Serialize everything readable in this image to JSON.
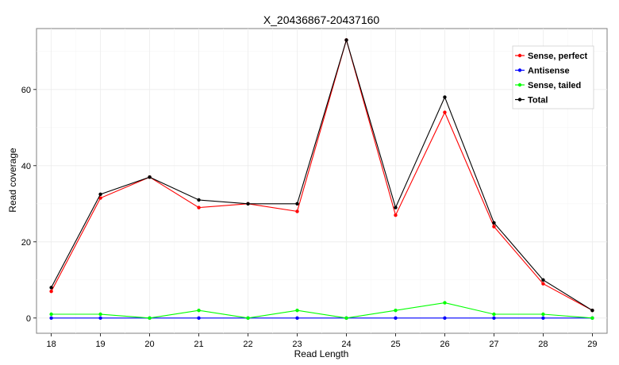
{
  "chart_data": {
    "type": "line",
    "title": "X_20436867-20437160",
    "xlabel": "Read Length",
    "ylabel": "Read coverage",
    "categories": [
      "18",
      "19",
      "20",
      "21",
      "22",
      "23",
      "24",
      "25",
      "26",
      "27",
      "28",
      "29"
    ],
    "ylim": [
      -4,
      76
    ],
    "yticks": [
      0,
      20,
      40,
      60
    ],
    "grid": true,
    "legend_position": "top-right",
    "series": [
      {
        "name": "Sense, perfect",
        "color": "#ff0000",
        "values": [
          7,
          31.5,
          37,
          29,
          30,
          28,
          73,
          27,
          54,
          24,
          9,
          2
        ]
      },
      {
        "name": "Antisense",
        "color": "#0000ff",
        "values": [
          0,
          0,
          0,
          0,
          0,
          0,
          0,
          0,
          0,
          0,
          0,
          0
        ]
      },
      {
        "name": "Sense, tailed",
        "color": "#00ff00",
        "values": [
          1,
          1,
          0,
          2,
          0,
          2,
          0,
          2,
          4,
          1,
          1,
          0
        ]
      },
      {
        "name": "Total",
        "color": "#000000",
        "values": [
          8,
          32.5,
          37,
          31,
          30,
          30,
          73,
          29,
          58,
          25,
          10,
          2
        ]
      }
    ]
  }
}
